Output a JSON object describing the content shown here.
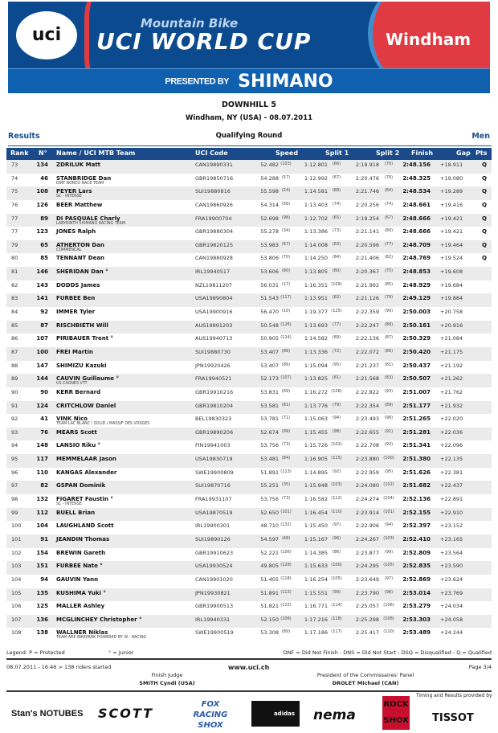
{
  "banner": {
    "uci": "uci",
    "subtitle": "Mountain Bike",
    "title": "UCI WORLD CUP",
    "city": "Windham",
    "presented_by": "PRESENTED BY",
    "sponsor": "SHIMANO",
    "colors": {
      "blue": "#0b4a8f",
      "red": "#e03a42"
    }
  },
  "event": {
    "title": "DOWNHILL 5",
    "subtitle": "Windham, NY (USA) - 08.07.2011"
  },
  "section": {
    "left": "Results",
    "center": "Qualifying Round",
    "right": "Men"
  },
  "columns": {
    "rank": "Rank",
    "no": "N°",
    "name": "Name / UCI MTB Team",
    "code": "UCI Code",
    "speed": "Speed",
    "split1": "Split 1",
    "split2": "Split 2",
    "finish": "Finish",
    "gap": "Gap",
    "pts": "Pts"
  },
  "rows": [
    {
      "rank": "73",
      "no": "134",
      "name": "ZDRILUK Matt",
      "team": "",
      "code": "CAN19890331",
      "speed": "52.482",
      "speed_rank": "(103)",
      "split1": "1:12.801",
      "split1_rank": "(66)",
      "split2": "2:19.918",
      "split2_rank": "(70)",
      "finish": "2:48.156",
      "gap": "+18.911",
      "pts": "Q"
    },
    {
      "rank": "74",
      "no": "46",
      "name": "STANBRIDGE Dan",
      "team": "DIRT NORCO RACE TEAM",
      "code": "GBR19850716",
      "speed": "54.288",
      "speed_rank": "(57)",
      "split1": "1:12.992",
      "split1_rank": "(67)",
      "split2": "2:20.476",
      "split2_rank": "(76)",
      "finish": "2:48.325",
      "gap": "+19.080",
      "pts": "Q"
    },
    {
      "rank": "75",
      "no": "108",
      "name": "PEYER Lars",
      "team": "SC - INTENSE",
      "code": "SUI19880816",
      "speed": "55.598",
      "speed_rank": "(24)",
      "split1": "1:14.581",
      "split1_rank": "(88)",
      "split2": "2:21.746",
      "split2_rank": "(84)",
      "finish": "2:48.534",
      "gap": "+19.289",
      "pts": "Q"
    },
    {
      "rank": "76",
      "no": "126",
      "name": "BEER Matthew",
      "team": "",
      "code": "CAN19860926",
      "speed": "54.314",
      "speed_rank": "(56)",
      "split1": "1:13.403",
      "split1_rank": "(74)",
      "split2": "2:20.256",
      "split2_rank": "(74)",
      "finish": "2:48.661",
      "gap": "+19.416",
      "pts": "Q"
    },
    {
      "rank": "77",
      "no": "89",
      "name": "DI PASQUALE Charly",
      "team": "LABYRINTH SHIMANO RACING TEAM",
      "code": "FRA19900704",
      "speed": "52.698",
      "speed_rank": "(98)",
      "split1": "1:12.702",
      "split1_rank": "(65)",
      "split2": "2:19.254",
      "split2_rank": "(67)",
      "finish": "2:48.666",
      "gap": "+19.421",
      "pts": "Q"
    },
    {
      "rank": "77",
      "no": "123",
      "name": "JONES Ralph",
      "team": "",
      "code": "GBR19880304",
      "speed": "55.278",
      "speed_rank": "(34)",
      "split1": "1:13.386",
      "split1_rank": "(73)",
      "split2": "2:21.141",
      "split2_rank": "(80)",
      "finish": "2:48.666",
      "gap": "+19.421",
      "pts": "Q"
    },
    {
      "rank": "79",
      "no": "65",
      "name": "ATHERTON Dan",
      "team": "COMMENCAL",
      "code": "GBR19820125",
      "speed": "53.983",
      "speed_rank": "(67)",
      "split1": "1:14.008",
      "split1_rank": "(83)",
      "split2": "2:20.596",
      "split2_rank": "(77)",
      "finish": "2:48.709",
      "gap": "+19.464",
      "pts": "Q"
    },
    {
      "rank": "80",
      "no": "85",
      "name": "TENNANT Dean",
      "team": "",
      "code": "CAN19880928",
      "speed": "53.806",
      "speed_rank": "(70)",
      "split1": "1:14.250",
      "split1_rank": "(84)",
      "split2": "2:21.406",
      "split2_rank": "(82)",
      "finish": "2:48.769",
      "gap": "+19.524",
      "pts": "Q"
    },
    {
      "rank": "81",
      "no": "146",
      "name": "SHERIDAN Dan °",
      "team": "",
      "code": "IRL19940517",
      "speed": "53.606",
      "speed_rank": "(80)",
      "split1": "1:13.805",
      "split1_rank": "(80)",
      "split2": "2:20.367",
      "split2_rank": "(75)",
      "finish": "2:48.853",
      "gap": "+19.608",
      "pts": ""
    },
    {
      "rank": "82",
      "no": "143",
      "name": "DODDS James",
      "team": "",
      "code": "NZL19811207",
      "speed": "56.031",
      "speed_rank": "(17)",
      "split1": "1:16.351",
      "split1_rank": "(109)",
      "split2": "2:21.992",
      "split2_rank": "(85)",
      "finish": "2:48.929",
      "gap": "+19.684",
      "pts": ""
    },
    {
      "rank": "83",
      "no": "141",
      "name": "FURBEE Ben",
      "team": "",
      "code": "USA19890804",
      "speed": "51.543",
      "speed_rank": "(117)",
      "split1": "1:13.951",
      "split1_rank": "(82)",
      "split2": "2:21.126",
      "split2_rank": "(79)",
      "finish": "2:49.129",
      "gap": "+19.884",
      "pts": ""
    },
    {
      "rank": "84",
      "no": "92",
      "name": "IMMER Tyler",
      "team": "",
      "code": "USA19900916",
      "speed": "56.470",
      "speed_rank": "(10)",
      "split1": "1:19.377",
      "split1_rank": "(125)",
      "split2": "2:22.359",
      "split2_rank": "(90)",
      "finish": "2:50.003",
      "gap": "+20.758",
      "pts": ""
    },
    {
      "rank": "85",
      "no": "87",
      "name": "RISCHBIETH Will",
      "team": "",
      "code": "AUS19891203",
      "speed": "50.548",
      "speed_rank": "(126)",
      "split1": "1:13.693",
      "split1_rank": "(77)",
      "split2": "2:22.247",
      "split2_rank": "(88)",
      "finish": "2:50.161",
      "gap": "+20.916",
      "pts": ""
    },
    {
      "rank": "86",
      "no": "107",
      "name": "PIRIBAUER  Trent °",
      "team": "",
      "code": "AUS19940713",
      "speed": "50.905",
      "speed_rank": "(124)",
      "split1": "1:14.582",
      "split1_rank": "(89)",
      "split2": "2:22.136",
      "split2_rank": "(87)",
      "finish": "2:50.329",
      "gap": "+21.084",
      "pts": ""
    },
    {
      "rank": "87",
      "no": "100",
      "name": "FREI Martin",
      "team": "",
      "code": "SUI19880730",
      "speed": "53.407",
      "speed_rank": "(86)",
      "split1": "1:13.336",
      "split1_rank": "(72)",
      "split2": "2:22.072",
      "split2_rank": "(86)",
      "finish": "2:50.420",
      "gap": "+21.175",
      "pts": ""
    },
    {
      "rank": "88",
      "no": "147",
      "name": "SHIMIZU Kazuki",
      "team": "",
      "code": "JPN19920426",
      "speed": "53.407",
      "speed_rank": "(86)",
      "split1": "1:15.094",
      "split1_rank": "(95)",
      "split2": "2:21.237",
      "split2_rank": "(81)",
      "finish": "2:50.437",
      "gap": "+21.192",
      "pts": ""
    },
    {
      "rank": "89",
      "no": "144",
      "name": "CAUVIN Guillaume °",
      "team": "US CAGNES VTT",
      "code": "FRA19940521",
      "speed": "52.173",
      "speed_rank": "(107)",
      "split1": "1:13.825",
      "split1_rank": "(81)",
      "split2": "2:21.568",
      "split2_rank": "(83)",
      "finish": "2:50.507",
      "gap": "+21.262",
      "pts": ""
    },
    {
      "rank": "90",
      "no": "90",
      "name": "KERR Bernard",
      "team": "",
      "code": "GBR19910216",
      "speed": "53.831",
      "speed_rank": "(69)",
      "split1": "1:16.272",
      "split1_rank": "(106)",
      "split2": "2:22.822",
      "split2_rank": "(93)",
      "finish": "2:51.007",
      "gap": "+21.762",
      "pts": ""
    },
    {
      "rank": "91",
      "no": "124",
      "name": "CRITCHLOW Daniel",
      "team": "",
      "code": "GBR19810204",
      "speed": "53.581",
      "speed_rank": "(81)",
      "split1": "1:13.776",
      "split1_rank": "(79)",
      "split2": "2:22.354",
      "split2_rank": "(89)",
      "finish": "2:51.177",
      "gap": "+21.932",
      "pts": ""
    },
    {
      "rank": "92",
      "no": "41",
      "name": "VINK Nico",
      "team": "TEAM LAC BLANC / SOLID / MASSIF DES VOSGES",
      "code": "BEL19830323",
      "speed": "53.781",
      "speed_rank": "(71)",
      "split1": "1:15.063",
      "split1_rank": "(94)",
      "split2": "2:23.493",
      "split2_rank": "(96)",
      "finish": "2:51.265",
      "gap": "+22.020",
      "pts": ""
    },
    {
      "rank": "93",
      "no": "76",
      "name": "MEARS Scott",
      "team": "",
      "code": "GBR19890206",
      "speed": "52.674",
      "speed_rank": "(99)",
      "split1": "1:15.455",
      "split1_rank": "(98)",
      "split2": "2:22.655",
      "split2_rank": "(91)",
      "finish": "2:51.281",
      "gap": "+22.036",
      "pts": ""
    },
    {
      "rank": "94",
      "no": "148",
      "name": "LANSIO Riku °",
      "team": "",
      "code": "FIN19941003",
      "speed": "53.756",
      "speed_rank": "(73)",
      "split1": "1:15.726",
      "split1_rank": "(102)",
      "split2": "2:22.708",
      "split2_rank": "(92)",
      "finish": "2:51.341",
      "gap": "+22.096",
      "pts": ""
    },
    {
      "rank": "95",
      "no": "117",
      "name": "MEMMELAAR Jason",
      "team": "",
      "code": "USA19830719",
      "speed": "53.481",
      "speed_rank": "(84)",
      "split1": "1:16.905",
      "split1_rank": "(115)",
      "split2": "2:23.880",
      "split2_rank": "(100)",
      "finish": "2:51.380",
      "gap": "+22.135",
      "pts": ""
    },
    {
      "rank": "96",
      "no": "110",
      "name": "KANGAS Alexander",
      "team": "",
      "code": "SWE19900809",
      "speed": "51.891",
      "speed_rank": "(113)",
      "split1": "1:14.895",
      "split1_rank": "(92)",
      "split2": "2:22.959",
      "split2_rank": "(95)",
      "finish": "2:51.626",
      "gap": "+22.381",
      "pts": ""
    },
    {
      "rank": "97",
      "no": "82",
      "name": "GSPAN Dominik",
      "team": "",
      "code": "SUI19870716",
      "speed": "55.251",
      "speed_rank": "(35)",
      "split1": "1:15.948",
      "split1_rank": "(103)",
      "split2": "2:24.080",
      "split2_rank": "(102)",
      "finish": "2:51.682",
      "gap": "+22.437",
      "pts": ""
    },
    {
      "rank": "98",
      "no": "132",
      "name": "FIGARET Faustin °",
      "team": "SC - INTENSE",
      "code": "FRA19931107",
      "speed": "53.756",
      "speed_rank": "(73)",
      "split1": "1:16.582",
      "split1_rank": "(112)",
      "split2": "2:24.274",
      "split2_rank": "(104)",
      "finish": "2:52.136",
      "gap": "+22.891",
      "pts": ""
    },
    {
      "rank": "99",
      "no": "112",
      "name": "BUELL Brian",
      "team": "",
      "code": "USA19870519",
      "speed": "52.650",
      "speed_rank": "(101)",
      "split1": "1:16.454",
      "split1_rank": "(110)",
      "split2": "2:23.914",
      "split2_rank": "(101)",
      "finish": "2:52.155",
      "gap": "+22.910",
      "pts": ""
    },
    {
      "rank": "100",
      "no": "104",
      "name": "LAUGHLAND Scott",
      "team": "",
      "code": "IRL19900301",
      "speed": "48.710",
      "speed_rank": "(132)",
      "split1": "1:15.450",
      "split1_rank": "(97)",
      "split2": "2:22.906",
      "split2_rank": "(94)",
      "finish": "2:52.397",
      "gap": "+23.152",
      "pts": ""
    },
    {
      "rank": "101",
      "no": "91",
      "name": "JEANDIN Thomas",
      "team": "",
      "code": "SUI19890126",
      "speed": "54.597",
      "speed_rank": "(48)",
      "split1": "1:15.167",
      "split1_rank": "(96)",
      "split2": "2:24.267",
      "split2_rank": "(103)",
      "finish": "2:52.410",
      "gap": "+23.165",
      "pts": ""
    },
    {
      "rank": "102",
      "no": "154",
      "name": "BREWIN Gareth",
      "team": "",
      "code": "GBR19910623",
      "speed": "52.221",
      "speed_rank": "(106)",
      "split1": "1:14.385",
      "split1_rank": "(86)",
      "split2": "2:23.877",
      "split2_rank": "(99)",
      "finish": "2:52.809",
      "gap": "+23.564",
      "pts": ""
    },
    {
      "rank": "103",
      "no": "151",
      "name": "FURBEE Nate °",
      "team": "",
      "code": "USA19930524",
      "speed": "49.805",
      "speed_rank": "(128)",
      "split1": "1:15.633",
      "split1_rank": "(100)",
      "split2": "2:24.295",
      "split2_rank": "(105)",
      "finish": "2:52.835",
      "gap": "+23.590",
      "pts": ""
    },
    {
      "rank": "104",
      "no": "94",
      "name": "GAUVIN Yann",
      "team": "",
      "code": "CAN19901020",
      "speed": "51.405",
      "speed_rank": "(118)",
      "split1": "1:16.254",
      "split1_rank": "(105)",
      "split2": "2:23.649",
      "split2_rank": "(97)",
      "finish": "2:52.869",
      "gap": "+23.624",
      "pts": ""
    },
    {
      "rank": "105",
      "no": "135",
      "name": "KUSHIMA Yuki °",
      "team": "",
      "code": "JPN19930821",
      "speed": "51.891",
      "speed_rank": "(113)",
      "split1": "1:15.551",
      "split1_rank": "(99)",
      "split2": "2:23.790",
      "split2_rank": "(98)",
      "finish": "2:53.014",
      "gap": "+23.769",
      "pts": ""
    },
    {
      "rank": "106",
      "no": "125",
      "name": "MALLER Ashley",
      "team": "",
      "code": "GBR19900513",
      "speed": "51.821",
      "speed_rank": "(115)",
      "split1": "1:16.771",
      "split1_rank": "(114)",
      "split2": "2:25.057",
      "split2_rank": "(106)",
      "finish": "2:53.279",
      "gap": "+24.034",
      "pts": ""
    },
    {
      "rank": "107",
      "no": "136",
      "name": "MCGLINCHEY Christopher °",
      "team": "",
      "code": "IRL19940331",
      "speed": "52.150",
      "speed_rank": "(108)",
      "split1": "1:17.216",
      "split1_rank": "(118)",
      "split2": "2:25.298",
      "split2_rank": "(108)",
      "finish": "2:53.303",
      "gap": "+24.058",
      "pts": ""
    },
    {
      "rank": "108",
      "no": "138",
      "name": "WALLNER Niklas",
      "team": "TEAM ARE BIKEPARK POWERED BY W - RACING",
      "code": "SWE19900519",
      "speed": "53.308",
      "speed_rank": "(89)",
      "split1": "1:17.186",
      "split1_rank": "(117)",
      "split2": "2:25.417",
      "split2_rank": "(110)",
      "finish": "2:53.489",
      "gap": "+24.244",
      "pts": ""
    }
  ],
  "legend": {
    "protected": "Legend: P = Protected",
    "junior": "° = Junior",
    "codes": "DNF = Did Not Finish - DNS = Did Not Start - DSQ = Disqualified - Q = Qualified"
  },
  "footer": {
    "timestamp": "08.07.2011 - 16:46 > 138 riders started",
    "website": "www.uci.ch",
    "page": "Page 3/4",
    "judge_label": "Finish Judge",
    "judge_name": "SMITH Cyndi (USA)",
    "president_label": "President of the Commissaires' Panel",
    "president_name": "DROLET Michael (CAN)",
    "timing": "Timing and Results provided by"
  },
  "sponsors": [
    "Stan's NOTUBES",
    "SCOTT",
    "FOX RACING SHOX",
    "adidas",
    "nema",
    "ROCK SHOX",
    "TISSOT"
  ]
}
